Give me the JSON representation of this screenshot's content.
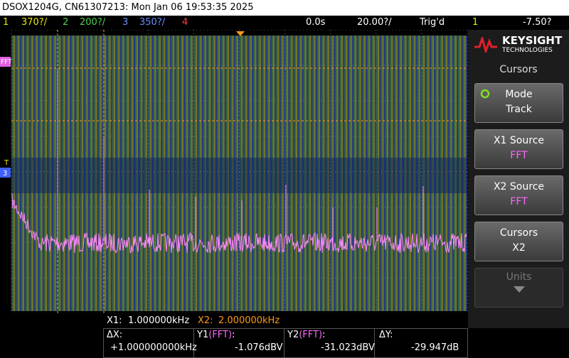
{
  "title_bar": "DSOX1204G, CN61307213: Mon Jan 06 19:53:35 2025",
  "status_bar": {
    "ch1": "1",
    "ch1_scale": "370?/",
    "ch2": "2",
    "ch2_scale": "200?/",
    "ch3": "3",
    "ch3_scale": "350?/",
    "ch4": "4",
    "time_delay": "0.0s",
    "time_scale": "20.00?/",
    "trigger_status": "Trig'd",
    "trigger_source": "1",
    "trigger_level": "-7.50?"
  },
  "screen_markers": {
    "fft": "FFT",
    "trigger": "T",
    "ch3": "3"
  },
  "side_panel": {
    "brand": "KEYSIGHT",
    "brand_sub": "TECHNOLOGIES",
    "menu_title": "Cursors",
    "buttons": [
      {
        "label": "Mode",
        "value": "Track"
      },
      {
        "label": "X1 Source",
        "value": "FFT"
      },
      {
        "label": "X2 Source",
        "value": "FFT"
      },
      {
        "label": "Cursors",
        "value": "X2"
      },
      {
        "label": "Units"
      }
    ]
  },
  "readout": {
    "x1_label": "X1:",
    "x1_value": "1.000000kHz",
    "x2_label": "X2:",
    "x2_value": "2.000000kHz",
    "dx_label": "ΔX:",
    "dx_value": "+1.000000000kHz",
    "y1_label": "Y1",
    "y1_source": "(FFT)",
    "y1_colon": ":",
    "y1_value": "-1.076dBV",
    "y2_label": "Y2",
    "y2_source": "(FFT)",
    "y2_colon": ":",
    "y2_value": "-31.023dBV",
    "dy_label": "ΔY:",
    "dy_value": "-29.947dB"
  }
}
